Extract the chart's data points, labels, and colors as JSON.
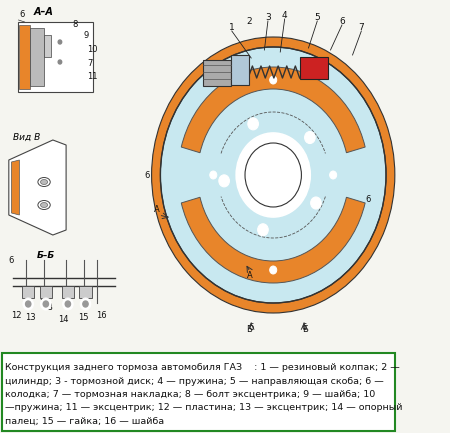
{
  "title": "Конструкция заднего тормоза автомобиля ГАЗ",
  "caption_line1": "Конструкция заднего тормоза автомобиля ГАЗ    : 1 — резиновый колпак; 2 —",
  "caption_line2": "цилиндр; 3 - тормозной диск; 4 — пружина; 5 — направляющая скоба; 6 —",
  "caption_line3": "колодка; 7 — тормозная накладка; 8 — болт эксцентрика; 9 — шайба; 10",
  "caption_line4": "—пружина; 11 — эксцентрик; 12 — пластина; 13 — эксцентрик; 14 — опорный",
  "caption_line5": "палец; 15 — гайка; 16 — шайба",
  "bg_color": "#f5f5f0",
  "diagram_bg": "#c8e8f0",
  "orange_color": "#e8852a",
  "red_color": "#cc2222",
  "border_color": "#228822",
  "text_color": "#111111",
  "label_fontsize": 6.5,
  "caption_fontsize": 6.8
}
